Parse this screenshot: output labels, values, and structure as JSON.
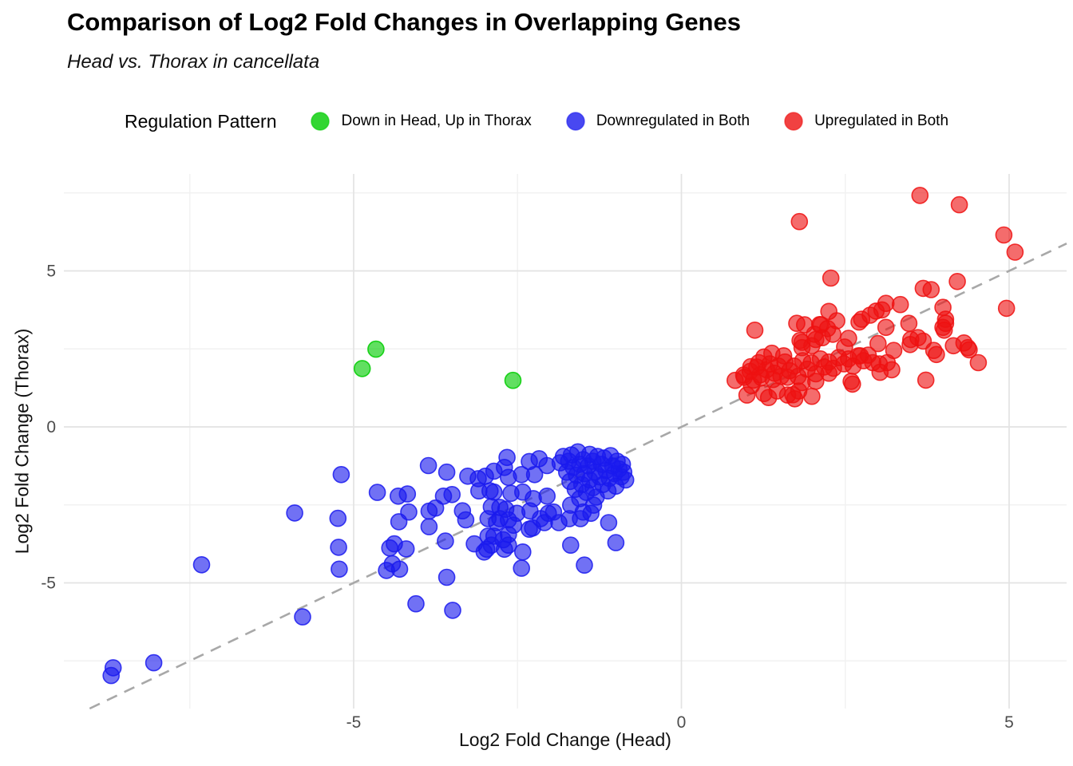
{
  "title": "Comparison of Log2 Fold Changes in Overlapping Genes",
  "subtitle": "Head vs. Thorax in cancellata",
  "legend": {
    "title": "Regulation Pattern",
    "items": [
      {
        "label": "Down in Head, Up in Thorax",
        "color": "#00cc00"
      },
      {
        "label": "Downregulated in Both",
        "color": "#1a1aee"
      },
      {
        "label": "Upregulated in Both",
        "color": "#ee1111"
      }
    ]
  },
  "chart_data": {
    "type": "scatter",
    "title": "Comparison of Log2 Fold Changes in Overlapping Genes",
    "subtitle": "Head vs. Thorax in cancellata",
    "xlabel": "Log2 Fold Change (Head)",
    "ylabel": "Log2 Fold Change (Thorax)",
    "xlim": [
      -9.4,
      5.9
    ],
    "ylim": [
      -9.0,
      8.1
    ],
    "x_major_ticks": [
      -5,
      0,
      5
    ],
    "y_major_ticks": [
      -5,
      0,
      5
    ],
    "x_minor_ticks": [
      -7.5,
      -2.5,
      2.5
    ],
    "y_minor_ticks": [
      -7.5,
      -2.5,
      2.5,
      7.5
    ],
    "grid": true,
    "identity_line": {
      "style": "dashed",
      "color": "#a8a8a8",
      "equation": "y = x"
    },
    "legend_position": "top",
    "series": [
      {
        "name": "Down in Head, Up in Thorax",
        "color": "#00cc00",
        "points": [
          [
            -4.66,
            2.49
          ],
          [
            -4.87,
            1.87
          ],
          [
            -2.57,
            1.49
          ]
        ]
      },
      {
        "name": "Downregulated in Both",
        "color": "#1a1aee",
        "points": [
          [
            -8.7,
            -7.97
          ],
          [
            -8.67,
            -7.72
          ],
          [
            -8.05,
            -7.56
          ],
          [
            -7.32,
            -4.42
          ],
          [
            -5.9,
            -2.76
          ],
          [
            -5.78,
            -6.09
          ],
          [
            -5.19,
            -1.53
          ],
          [
            -5.24,
            -2.93
          ],
          [
            -5.23,
            -3.86
          ],
          [
            -5.22,
            -4.56
          ],
          [
            -4.64,
            -2.1
          ],
          [
            -4.32,
            -2.22
          ],
          [
            -4.18,
            -2.15
          ],
          [
            -4.31,
            -3.04
          ],
          [
            -4.16,
            -2.73
          ],
          [
            -4.38,
            -3.75
          ],
          [
            -4.45,
            -3.88
          ],
          [
            -4.2,
            -3.91
          ],
          [
            -4.41,
            -4.39
          ],
          [
            -4.3,
            -4.56
          ],
          [
            -4.5,
            -4.6
          ],
          [
            -4.05,
            -5.67
          ],
          [
            -3.49,
            -5.88
          ],
          [
            -3.86,
            -1.24
          ],
          [
            -3.58,
            -1.45
          ],
          [
            -3.26,
            -1.58
          ],
          [
            -3.1,
            -1.66
          ],
          [
            -3.85,
            -2.7
          ],
          [
            -3.75,
            -2.6
          ],
          [
            -3.63,
            -2.22
          ],
          [
            -3.5,
            -2.17
          ],
          [
            -3.85,
            -3.2
          ],
          [
            -3.34,
            -2.69
          ],
          [
            -3.29,
            -2.98
          ],
          [
            -3.16,
            -3.75
          ],
          [
            -3.01,
            -4.01
          ],
          [
            -3.6,
            -3.66
          ],
          [
            -3.58,
            -4.82
          ],
          [
            -2.44,
            -4.53
          ],
          [
            -2.42,
            -4.01
          ],
          [
            -1.48,
            -4.43
          ],
          [
            -1.0,
            -3.71
          ],
          [
            -1.69,
            -3.79
          ],
          [
            -2.99,
            -1.58
          ],
          [
            -2.86,
            -1.42
          ],
          [
            -2.7,
            -1.3
          ],
          [
            -2.64,
            -1.62
          ],
          [
            -2.44,
            -1.53
          ],
          [
            -2.24,
            -1.53
          ],
          [
            -2.66,
            -0.98
          ],
          [
            -2.32,
            -1.11
          ],
          [
            -2.17,
            -1.02
          ],
          [
            -2.05,
            -1.24
          ],
          [
            -3.09,
            -2.05
          ],
          [
            -2.92,
            -2.05
          ],
          [
            -2.86,
            -2.09
          ],
          [
            -2.6,
            -2.13
          ],
          [
            -2.42,
            -2.09
          ],
          [
            -2.26,
            -2.3
          ],
          [
            -2.05,
            -2.22
          ],
          [
            -2.9,
            -2.56
          ],
          [
            -2.77,
            -2.58
          ],
          [
            -2.68,
            -2.64
          ],
          [
            -2.51,
            -2.77
          ],
          [
            -2.31,
            -2.69
          ],
          [
            -2.15,
            -2.94
          ],
          [
            -2.03,
            -2.77
          ],
          [
            -1.95,
            -2.73
          ],
          [
            -1.87,
            -3.07
          ],
          [
            -1.71,
            -2.94
          ],
          [
            -1.54,
            -2.94
          ],
          [
            -1.38,
            -2.77
          ],
          [
            -1.11,
            -3.07
          ],
          [
            -2.95,
            -2.94
          ],
          [
            -2.77,
            -2.94
          ],
          [
            -2.82,
            -3.07
          ],
          [
            -2.64,
            -2.98
          ],
          [
            -2.32,
            -3.28
          ],
          [
            -2.09,
            -3.07
          ],
          [
            -2.56,
            -3.15
          ],
          [
            -2.27,
            -3.24
          ],
          [
            -2.95,
            -3.5
          ],
          [
            -2.86,
            -3.5
          ],
          [
            -2.72,
            -3.62
          ],
          [
            -2.64,
            -3.45
          ],
          [
            -2.97,
            -3.92
          ],
          [
            -2.7,
            -3.92
          ],
          [
            -2.9,
            -3.79
          ],
          [
            -2.64,
            -3.79
          ],
          [
            -1.69,
            -2.51
          ],
          [
            -1.5,
            -2.73
          ],
          [
            -1.34,
            -2.51
          ],
          [
            -1.85,
            -1.15
          ],
          [
            -1.8,
            -0.95
          ],
          [
            -1.75,
            -1.45
          ],
          [
            -1.72,
            -1.1
          ],
          [
            -1.7,
            -1.75
          ],
          [
            -1.68,
            -0.9
          ],
          [
            -1.65,
            -1.3
          ],
          [
            -1.62,
            -2.0
          ],
          [
            -1.6,
            -1.55
          ],
          [
            -1.58,
            -0.8
          ],
          [
            -1.55,
            -1.2
          ],
          [
            -1.55,
            -2.3
          ],
          [
            -1.52,
            -1.85
          ],
          [
            -1.5,
            -1.05
          ],
          [
            -1.48,
            -1.5
          ],
          [
            -1.45,
            -2.1
          ],
          [
            -1.42,
            -1.25
          ],
          [
            -1.4,
            -0.88
          ],
          [
            -1.4,
            -1.7
          ],
          [
            -1.35,
            -1.95
          ],
          [
            -1.35,
            -1.1
          ],
          [
            -1.32,
            -1.45
          ],
          [
            -1.3,
            -2.25
          ],
          [
            -1.28,
            -0.95
          ],
          [
            -1.25,
            -1.6
          ],
          [
            -1.22,
            -1.2
          ],
          [
            -1.2,
            -1.85
          ],
          [
            -1.18,
            -1.0
          ],
          [
            -1.15,
            -1.4
          ],
          [
            -1.12,
            -2.05
          ],
          [
            -1.1,
            -1.65
          ],
          [
            -1.08,
            -0.92
          ],
          [
            -1.05,
            -1.25
          ],
          [
            -1.02,
            -1.5
          ],
          [
            -1.0,
            -1.9
          ],
          [
            -0.98,
            -1.1
          ],
          [
            -0.95,
            -1.35
          ],
          [
            -0.92,
            -1.6
          ],
          [
            -0.9,
            -1.2
          ],
          [
            -0.88,
            -1.45
          ],
          [
            -0.85,
            -1.7
          ]
        ]
      },
      {
        "name": "Upregulated in Both",
        "color": "#ee1111",
        "points": [
          [
            1.8,
            6.58
          ],
          [
            3.64,
            7.42
          ],
          [
            4.24,
            7.12
          ],
          [
            4.92,
            6.15
          ],
          [
            5.09,
            5.6
          ],
          [
            2.28,
            4.77
          ],
          [
            3.69,
            4.44
          ],
          [
            3.81,
            4.4
          ],
          [
            4.21,
            4.66
          ],
          [
            4.96,
            3.8
          ],
          [
            1.12,
            3.1
          ],
          [
            1.76,
            3.32
          ],
          [
            2.11,
            3.28
          ],
          [
            2.23,
            3.15
          ],
          [
            2.37,
            3.4
          ],
          [
            3.34,
            3.92
          ],
          [
            3.12,
            3.96
          ],
          [
            3.99,
            3.83
          ],
          [
            4.03,
            3.45
          ],
          [
            3.99,
            3.19
          ],
          [
            2.25,
            3.7
          ],
          [
            2.13,
            3.27
          ],
          [
            2.75,
            3.45
          ],
          [
            2.88,
            3.58
          ],
          [
            3.06,
            3.75
          ],
          [
            2.71,
            3.36
          ],
          [
            3.12,
            3.19
          ],
          [
            1.88,
            3.27
          ],
          [
            2.03,
            2.97
          ],
          [
            3.47,
            3.32
          ],
          [
            2.97,
            3.71
          ],
          [
            3.0,
            2.67
          ],
          [
            3.24,
            2.45
          ],
          [
            3.14,
            2.06
          ],
          [
            3.02,
            2.02
          ],
          [
            3.5,
            2.8
          ],
          [
            3.69,
            2.75
          ],
          [
            3.85,
            2.45
          ],
          [
            3.89,
            2.32
          ],
          [
            4.03,
            3.32
          ],
          [
            4.01,
            3.1
          ],
          [
            4.15,
            2.6
          ],
          [
            4.31,
            2.69
          ],
          [
            4.37,
            2.54
          ],
          [
            4.39,
            2.47
          ],
          [
            4.53,
            2.06
          ],
          [
            3.73,
            1.5
          ],
          [
            3.21,
            1.83
          ],
          [
            3.03,
            1.75
          ],
          [
            3.49,
            2.64
          ],
          [
            3.61,
            2.86
          ],
          [
            2.92,
            2.06
          ],
          [
            2.73,
            2.28
          ],
          [
            0.82,
            1.49
          ],
          [
            0.95,
            1.66
          ],
          [
            1.07,
            1.32
          ],
          [
            1.26,
            1.07
          ],
          [
            1.46,
            1.15
          ],
          [
            1.62,
            1.02
          ],
          [
            1.79,
            1.15
          ],
          [
            1.99,
            0.98
          ],
          [
            1.73,
            0.9
          ],
          [
            1.33,
            0.94
          ],
          [
            1.0,
            1.02
          ],
          [
            1.7,
            1.03
          ],
          [
            1.81,
            2.77
          ],
          [
            1.99,
            2.6
          ],
          [
            2.15,
            2.86
          ],
          [
            2.49,
            2.56
          ],
          [
            1.38,
            2.36
          ],
          [
            1.26,
            2.24
          ],
          [
            1.56,
            2.28
          ],
          [
            1.84,
            2.54
          ],
          [
            1.06,
            1.93
          ],
          [
            1.18,
            2.06
          ],
          [
            0.96,
            1.59
          ],
          [
            1.2,
            1.67
          ],
          [
            1.42,
            1.72
          ],
          [
            1.62,
            1.59
          ],
          [
            1.84,
            1.42
          ],
          [
            2.05,
            1.46
          ],
          [
            2.25,
            1.72
          ],
          [
            2.59,
            1.46
          ],
          [
            1.84,
            2.71
          ],
          [
            2.05,
            2.8
          ],
          [
            2.55,
            2.84
          ],
          [
            2.31,
            2.97
          ],
          [
            2.61,
            1.37
          ],
          [
            1.05,
            1.78
          ],
          [
            1.1,
            1.5
          ],
          [
            1.15,
            1.92
          ],
          [
            1.22,
            1.58
          ],
          [
            1.3,
            1.83
          ],
          [
            1.35,
            2.02
          ],
          [
            1.4,
            1.52
          ],
          [
            1.48,
            1.95
          ],
          [
            1.52,
            1.62
          ],
          [
            1.58,
            2.08
          ],
          [
            1.65,
            1.8
          ],
          [
            1.72,
            1.95
          ],
          [
            1.78,
            1.62
          ],
          [
            1.85,
            2.12
          ],
          [
            1.92,
            1.85
          ],
          [
            1.98,
            2.05
          ],
          [
            2.05,
            1.7
          ],
          [
            2.12,
            2.18
          ],
          [
            2.18,
            1.92
          ],
          [
            2.25,
            2.08
          ],
          [
            2.32,
            1.88
          ],
          [
            2.4,
            2.22
          ],
          [
            2.48,
            2.02
          ],
          [
            2.55,
            2.18
          ],
          [
            2.62,
            1.95
          ],
          [
            2.7,
            2.28
          ],
          [
            2.78,
            2.12
          ],
          [
            2.85,
            2.3
          ]
        ]
      }
    ]
  }
}
